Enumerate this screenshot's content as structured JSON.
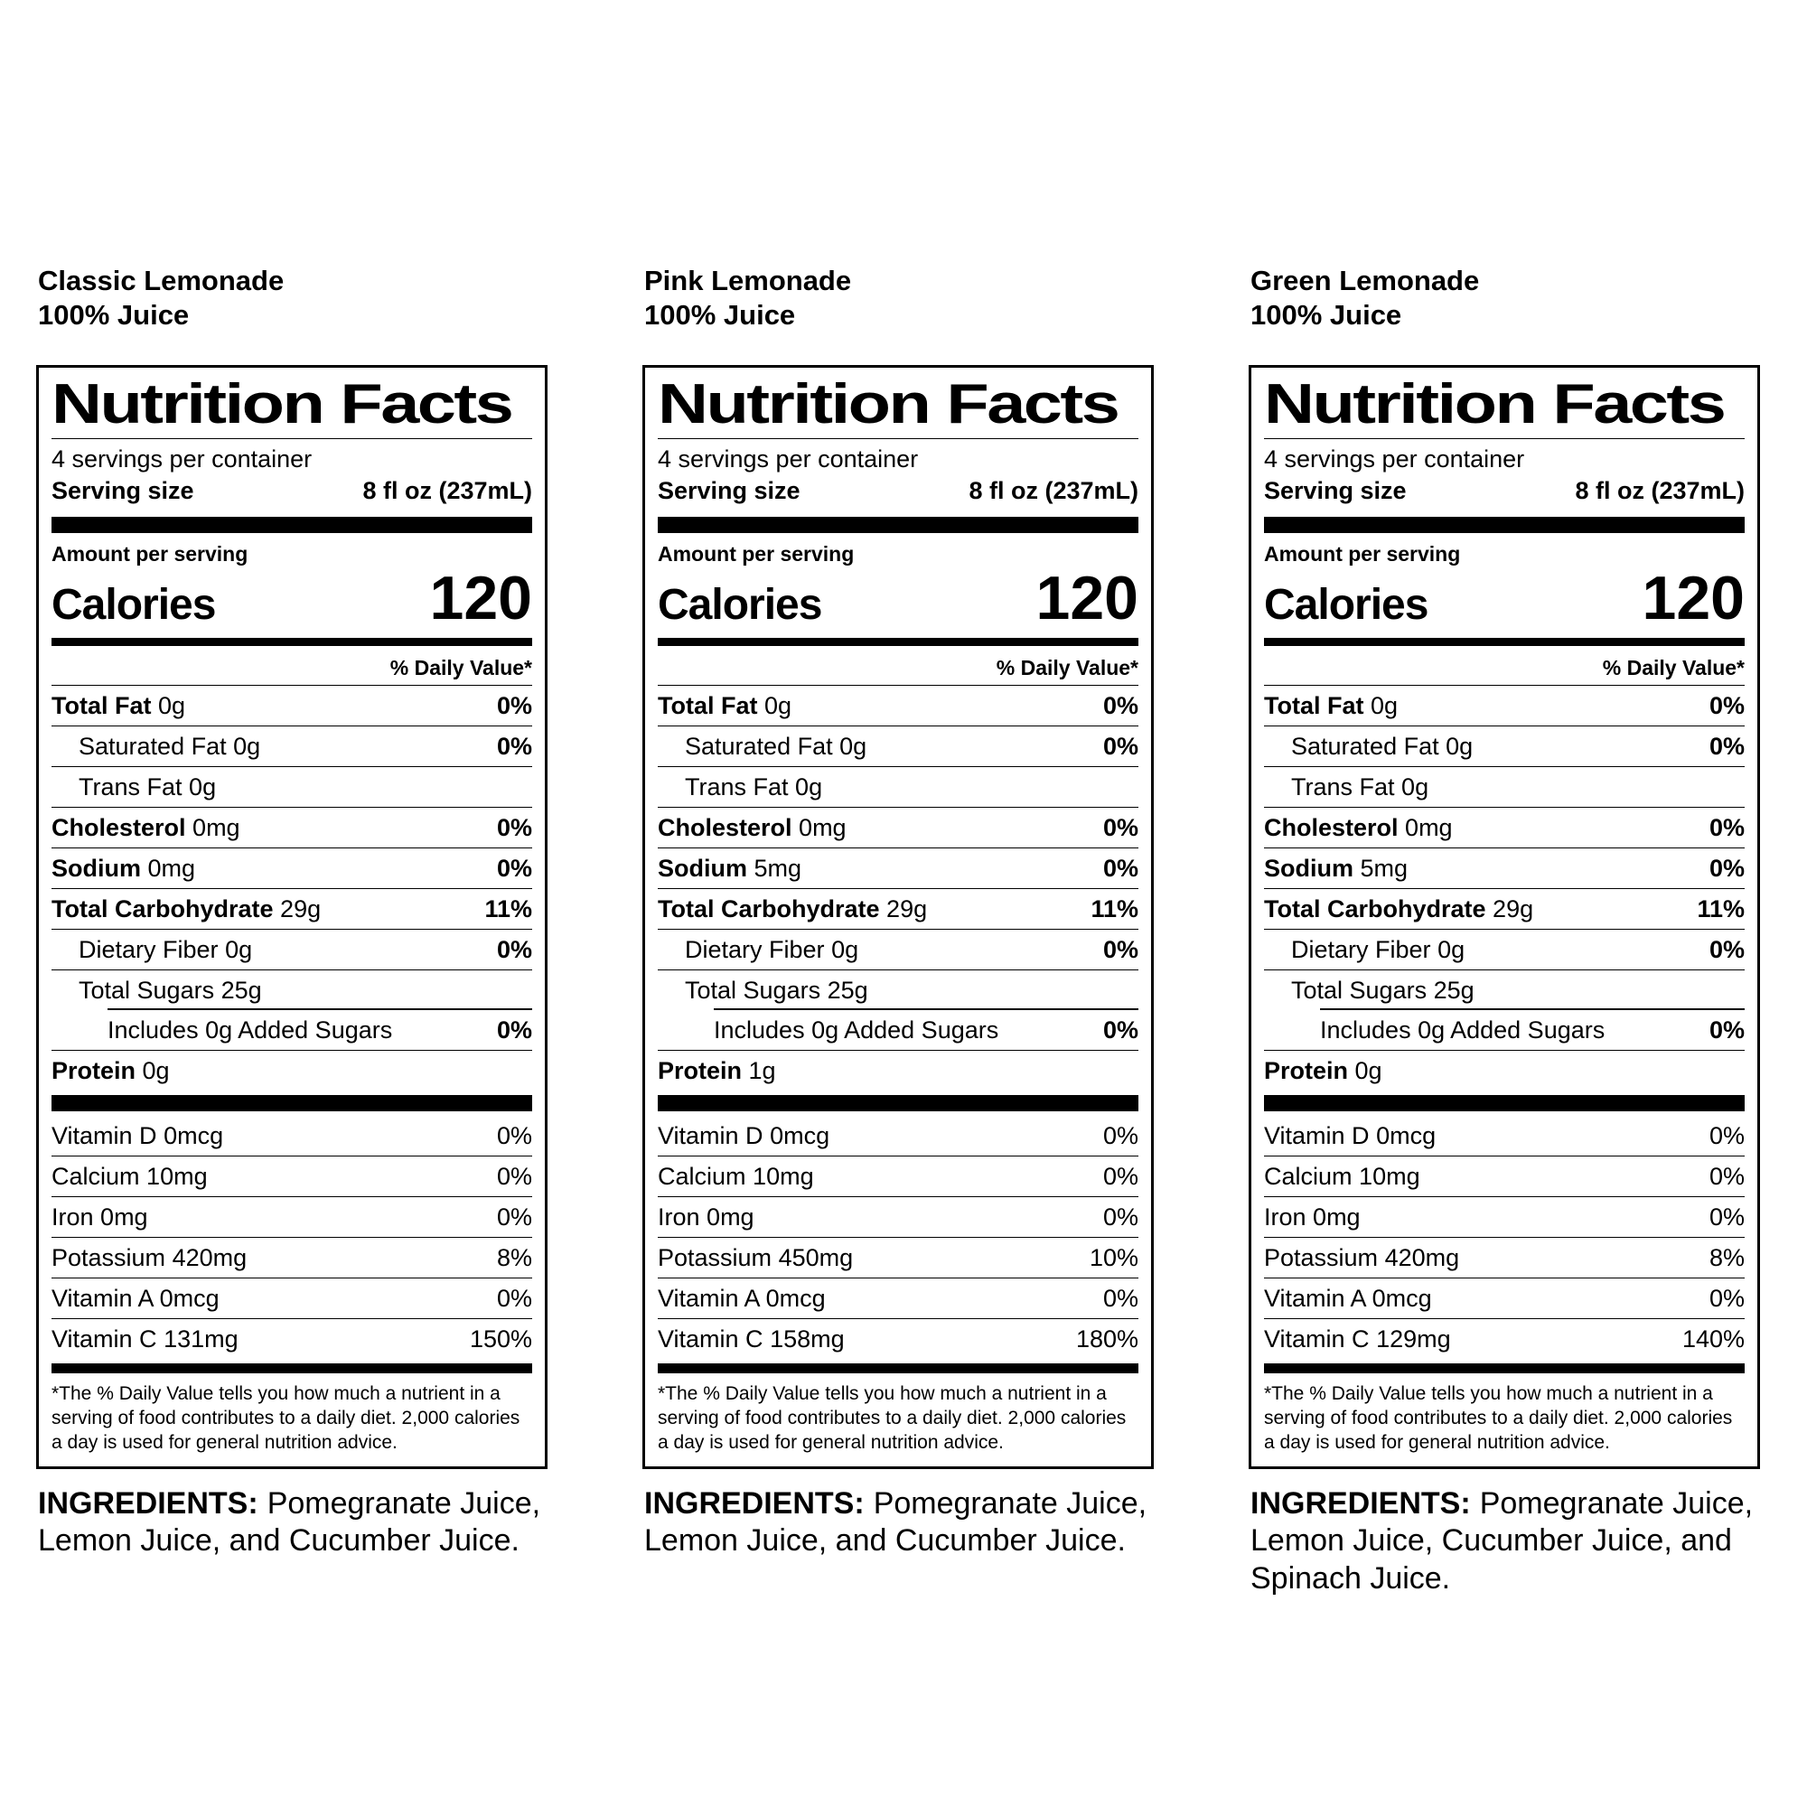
{
  "page": {
    "background": "#ffffff",
    "text_color": "#000000"
  },
  "labels": [
    {
      "product_name": "Classic Lemonade",
      "subtitle": "100% Juice",
      "title": "Nutrition Facts",
      "servings_per_container": "4 servings per container",
      "serving_size_label": "Serving size",
      "serving_size_value": "8 fl oz (237mL)",
      "amount_per_serving": "Amount per serving",
      "calories_label": "Calories",
      "calories_value": "120",
      "daily_value_header": "% Daily Value*",
      "nutrients": [
        {
          "name": "Total Fat",
          "amount": "0g",
          "dv": "0%",
          "bold": true,
          "indent": 0
        },
        {
          "name": "Saturated Fat",
          "amount": "0g",
          "dv": "0%",
          "bold": false,
          "indent": 1
        },
        {
          "name": "Trans Fat",
          "amount": "0g",
          "dv": "",
          "bold": false,
          "indent": 1
        },
        {
          "name": "Cholesterol",
          "amount": "0mg",
          "dv": "0%",
          "bold": true,
          "indent": 0
        },
        {
          "name": "Sodium",
          "amount": "0mg",
          "dv": "0%",
          "bold": true,
          "indent": 0
        },
        {
          "name": "Total Carbohydrate",
          "amount": "29g",
          "dv": "11%",
          "bold": true,
          "indent": 0
        },
        {
          "name": "Dietary Fiber",
          "amount": "0g",
          "dv": "0%",
          "bold": false,
          "indent": 1
        },
        {
          "name": "Total Sugars",
          "amount": "25g",
          "dv": "",
          "bold": false,
          "indent": 1,
          "sep_indent": true
        },
        {
          "name": "Includes 0g Added Sugars",
          "amount": "",
          "dv": "0%",
          "bold": false,
          "indent": 2
        },
        {
          "name": "Protein",
          "amount": "0g",
          "dv": "",
          "bold": true,
          "indent": 0
        }
      ],
      "vitamins": [
        {
          "name": "Vitamin D",
          "amount": "0mcg",
          "dv": "0%"
        },
        {
          "name": "Calcium",
          "amount": "10mg",
          "dv": "0%"
        },
        {
          "name": "Iron",
          "amount": "0mg",
          "dv": "0%"
        },
        {
          "name": "Potassium",
          "amount": "420mg",
          "dv": "8%"
        },
        {
          "name": "Vitamin A",
          "amount": "0mcg",
          "dv": "0%"
        },
        {
          "name": "Vitamin C",
          "amount": "131mg",
          "dv": "150%"
        }
      ],
      "footnote": "*The % Daily Value tells you how much a nutrient in a serving of food contributes to a daily diet. 2,000 calories a day is used for general nutrition advice.",
      "ingredients_label": "INGREDIENTS:",
      "ingredients_text": "Pomegranate Juice, Lemon Juice, and Cucumber Juice."
    },
    {
      "product_name": "Pink Lemonade",
      "subtitle": "100% Juice",
      "title": "Nutrition Facts",
      "servings_per_container": "4 servings per container",
      "serving_size_label": "Serving size",
      "serving_size_value": "8 fl oz (237mL)",
      "amount_per_serving": "Amount per serving",
      "calories_label": "Calories",
      "calories_value": "120",
      "daily_value_header": "% Daily Value*",
      "nutrients": [
        {
          "name": "Total Fat",
          "amount": "0g",
          "dv": "0%",
          "bold": true,
          "indent": 0
        },
        {
          "name": "Saturated Fat",
          "amount": "0g",
          "dv": "0%",
          "bold": false,
          "indent": 1
        },
        {
          "name": "Trans Fat",
          "amount": "0g",
          "dv": "",
          "bold": false,
          "indent": 1
        },
        {
          "name": "Cholesterol",
          "amount": "0mg",
          "dv": "0%",
          "bold": true,
          "indent": 0
        },
        {
          "name": "Sodium",
          "amount": "5mg",
          "dv": "0%",
          "bold": true,
          "indent": 0
        },
        {
          "name": "Total Carbohydrate",
          "amount": "29g",
          "dv": "11%",
          "bold": true,
          "indent": 0
        },
        {
          "name": "Dietary Fiber",
          "amount": "0g",
          "dv": "0%",
          "bold": false,
          "indent": 1
        },
        {
          "name": "Total Sugars",
          "amount": "25g",
          "dv": "",
          "bold": false,
          "indent": 1,
          "sep_indent": true
        },
        {
          "name": "Includes 0g Added Sugars",
          "amount": "",
          "dv": "0%",
          "bold": false,
          "indent": 2
        },
        {
          "name": "Protein",
          "amount": "1g",
          "dv": "",
          "bold": true,
          "indent": 0
        }
      ],
      "vitamins": [
        {
          "name": "Vitamin D",
          "amount": "0mcg",
          "dv": "0%"
        },
        {
          "name": "Calcium",
          "amount": "10mg",
          "dv": "0%"
        },
        {
          "name": "Iron",
          "amount": "0mg",
          "dv": "0%"
        },
        {
          "name": "Potassium",
          "amount": "450mg",
          "dv": "10%"
        },
        {
          "name": "Vitamin A",
          "amount": "0mcg",
          "dv": "0%"
        },
        {
          "name": "Vitamin C",
          "amount": "158mg",
          "dv": "180%"
        }
      ],
      "footnote": "*The % Daily Value tells you how much a nutrient in a serving of food contributes to a daily diet. 2,000 calories a day is used for general nutrition advice.",
      "ingredients_label": "INGREDIENTS:",
      "ingredients_text": "Pomegranate Juice, Lemon Juice, and Cucumber Juice."
    },
    {
      "product_name": "Green Lemonade",
      "subtitle": "100% Juice",
      "title": "Nutrition Facts",
      "servings_per_container": "4 servings per container",
      "serving_size_label": "Serving size",
      "serving_size_value": "8 fl oz (237mL)",
      "amount_per_serving": "Amount per serving",
      "calories_label": "Calories",
      "calories_value": "120",
      "daily_value_header": "% Daily Value*",
      "nutrients": [
        {
          "name": "Total Fat",
          "amount": "0g",
          "dv": "0%",
          "bold": true,
          "indent": 0
        },
        {
          "name": "Saturated Fat",
          "amount": "0g",
          "dv": "0%",
          "bold": false,
          "indent": 1
        },
        {
          "name": "Trans Fat",
          "amount": "0g",
          "dv": "",
          "bold": false,
          "indent": 1
        },
        {
          "name": "Cholesterol",
          "amount": "0mg",
          "dv": "0%",
          "bold": true,
          "indent": 0
        },
        {
          "name": "Sodium",
          "amount": "5mg",
          "dv": "0%",
          "bold": true,
          "indent": 0
        },
        {
          "name": "Total Carbohydrate",
          "amount": "29g",
          "dv": "11%",
          "bold": true,
          "indent": 0
        },
        {
          "name": "Dietary Fiber",
          "amount": "0g",
          "dv": "0%",
          "bold": false,
          "indent": 1
        },
        {
          "name": "Total Sugars",
          "amount": "25g",
          "dv": "",
          "bold": false,
          "indent": 1,
          "sep_indent": true
        },
        {
          "name": "Includes 0g Added Sugars",
          "amount": "",
          "dv": "0%",
          "bold": false,
          "indent": 2
        },
        {
          "name": "Protein",
          "amount": "0g",
          "dv": "",
          "bold": true,
          "indent": 0
        }
      ],
      "vitamins": [
        {
          "name": "Vitamin D",
          "amount": "0mcg",
          "dv": "0%"
        },
        {
          "name": "Calcium",
          "amount": "10mg",
          "dv": "0%"
        },
        {
          "name": "Iron",
          "amount": "0mg",
          "dv": "0%"
        },
        {
          "name": "Potassium",
          "amount": "420mg",
          "dv": "8%"
        },
        {
          "name": "Vitamin A",
          "amount": "0mcg",
          "dv": "0%"
        },
        {
          "name": "Vitamin C",
          "amount": "129mg",
          "dv": "140%"
        }
      ],
      "footnote": "*The % Daily Value tells you how much a nutrient in a serving of food contributes to a daily diet. 2,000 calories a day is used for general nutrition advice.",
      "ingredients_label": "INGREDIENTS:",
      "ingredients_text": "Pomegranate Juice, Lemon Juice, Cucumber Juice, and Spinach Juice."
    }
  ]
}
